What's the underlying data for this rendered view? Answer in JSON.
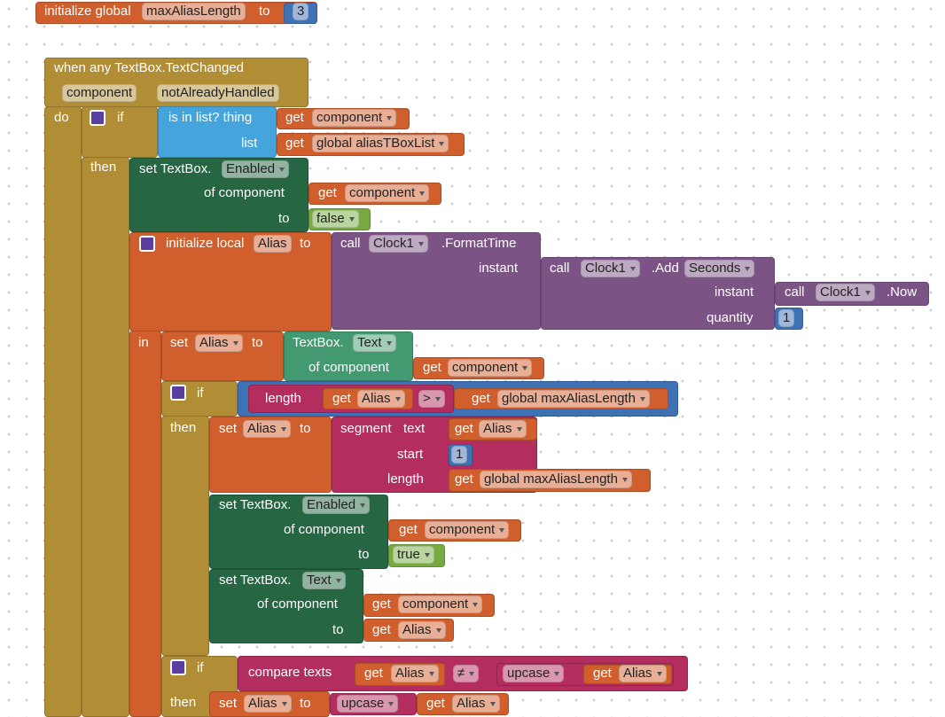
{
  "blocks": [
    [
      "initialize global",
      "maxAliasLength",
      "to",
      3
    ],
    [
      "when any TextBox.TextChanged",
      "component",
      "notAlreadyHandled",
      "do"
    ],
    [
      "if",
      "then"
    ],
    [
      "is in list? thing",
      "list"
    ],
    [
      "get",
      "component"
    ],
    [
      "get",
      "global aliasTBoxList"
    ],
    [
      "set TextBox.",
      "Enabled",
      "of component",
      "to"
    ],
    [
      "get",
      "component"
    ],
    [
      "false"
    ],
    [
      "initialize local",
      "Alias",
      "to",
      "in"
    ],
    [
      "call",
      "Clock1",
      ".FormatTime",
      "instant"
    ],
    [
      "call",
      "Clock1",
      ".Add",
      "Seconds",
      "instant",
      "quantity"
    ],
    [
      "call",
      "Clock1",
      ".Now"
    ],
    [
      1
    ],
    [
      "set",
      "Alias",
      "to"
    ],
    [
      "TextBox.",
      "Text",
      "of component"
    ],
    [
      "get",
      "component"
    ],
    [
      "if",
      "then"
    ],
    [
      ">"
    ],
    [
      "length"
    ],
    [
      "get",
      "Alias"
    ],
    [
      "get",
      "global maxAliasLength"
    ],
    [
      "set",
      "Alias",
      "to"
    ],
    [
      "segment",
      "text",
      "start",
      "length"
    ],
    [
      "get",
      "Alias"
    ],
    [
      1
    ],
    [
      "get",
      "global maxAliasLength"
    ],
    [
      "set TextBox.",
      "Enabled",
      "of component",
      "to"
    ],
    [
      "get",
      "component"
    ],
    [
      "true"
    ],
    [
      "set TextBox.",
      "Text",
      "of component",
      "to"
    ],
    [
      "get",
      "component"
    ],
    [
      "get",
      "Alias"
    ],
    [
      "if",
      "then"
    ],
    [
      "compare texts",
      "≠"
    ],
    [
      "get",
      "Alias"
    ],
    [
      "upcase"
    ],
    [
      "get",
      "Alias"
    ],
    [
      "set",
      "Alias",
      "to"
    ],
    [
      "upcase"
    ],
    [
      "get",
      "Alias"
    ]
  ]
}
